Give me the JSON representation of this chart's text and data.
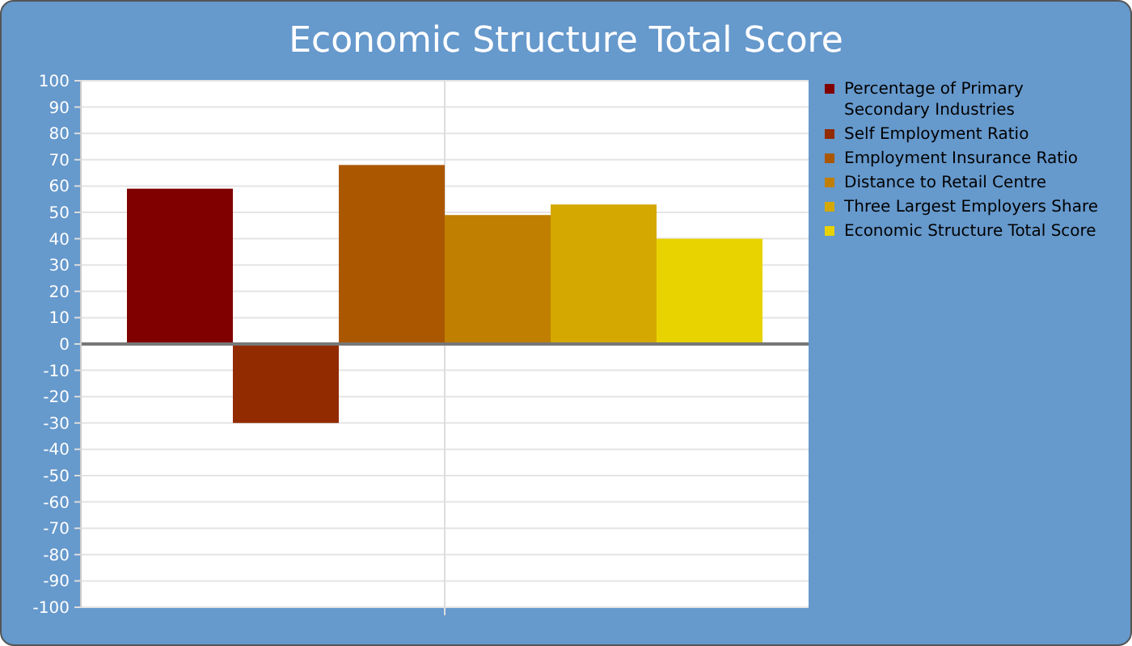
{
  "chart_data": {
    "type": "bar",
    "title": "Economic Structure Total Score",
    "categories": [
      null
    ],
    "series": [
      {
        "name": "Percentage of Primary Secondary Industries",
        "color": "#800000",
        "values": [
          59
        ]
      },
      {
        "name": "Self Employment Ratio",
        "color": "#922b00",
        "values": [
          -30
        ]
      },
      {
        "name": "Employment Insurance Ratio",
        "color": "#ab5700",
        "values": [
          68
        ]
      },
      {
        "name": "Distance to Retail Centre",
        "color": "#c07f00",
        "values": [
          49
        ]
      },
      {
        "name": "Three Largest Employers Share",
        "color": "#d4a800",
        "values": [
          53
        ]
      },
      {
        "name": "Economic Structure Total Score",
        "color": "#e8d300",
        "values": [
          40
        ]
      }
    ],
    "ylim": [
      -100,
      100
    ],
    "yticks": [
      -100,
      -90,
      -80,
      -70,
      -60,
      -50,
      -40,
      -30,
      -20,
      -10,
      0,
      10,
      20,
      30,
      40,
      50,
      60,
      70,
      80,
      90,
      100
    ],
    "grid": true,
    "legend": "top right"
  }
}
